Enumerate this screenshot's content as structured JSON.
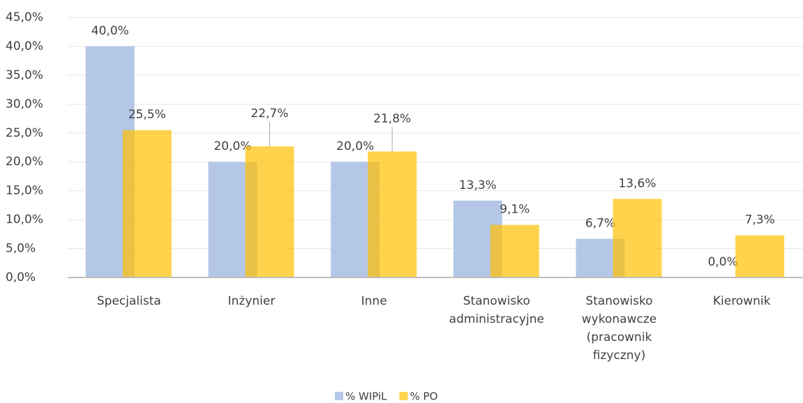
{
  "chart_data": {
    "type": "bar",
    "categories": [
      "Specjalista",
      "Inżynier",
      "Inne",
      "Stanowisko administracyjne",
      "Stanowisko wykonawcze (pracownik fizyczny)",
      "Kierownik"
    ],
    "series": [
      {
        "name": "% WIPiL",
        "color": "#b4c7e7",
        "values": [
          40,
          20,
          20,
          13.3,
          6.7,
          0
        ],
        "value_labels": [
          "40,0%",
          "20,0%",
          "20,0%",
          "13,3%",
          "6,7%",
          "0,0%"
        ]
      },
      {
        "name": "% PO",
        "color": "#ffc000",
        "values": [
          25.5,
          22.7,
          21.8,
          9.1,
          13.6,
          7.3
        ],
        "value_labels": [
          "25,5%",
          "22,7%",
          "21,8%",
          "9,1%",
          "13,6%",
          "7,3%"
        ]
      }
    ],
    "ylim": [
      0,
      45
    ],
    "yticks": [
      {
        "value": 0,
        "label": "0,0%"
      },
      {
        "value": 5,
        "label": "5,0%"
      },
      {
        "value": 10,
        "label": "10,0%"
      },
      {
        "value": 15,
        "label": "15,0%"
      },
      {
        "value": 20,
        "label": "20,0%"
      },
      {
        "value": 25,
        "label": "25,0%"
      },
      {
        "value": 30,
        "label": "30,0%"
      },
      {
        "value": 35,
        "label": "35,0%"
      },
      {
        "value": 40,
        "label": "40,0%"
      },
      {
        "value": 45,
        "label": "45,0%"
      }
    ],
    "grid": true,
    "legend": "bottom"
  }
}
